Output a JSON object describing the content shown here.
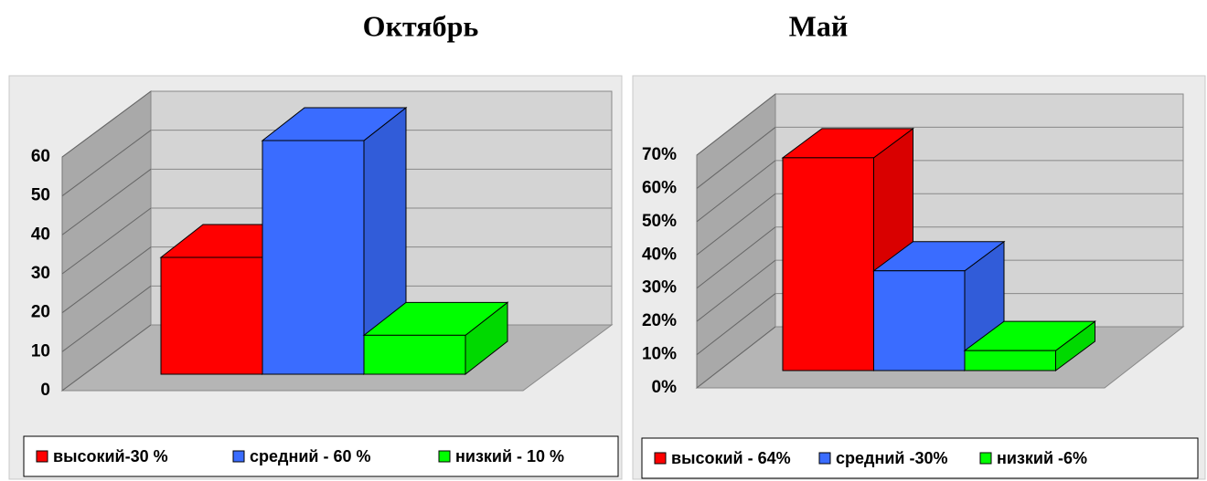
{
  "chart_data": [
    {
      "type": "bar3d",
      "title": "Октябрь",
      "categories": [
        "высокий-30 %",
        "средний - 60 %",
        "низкий - 10 %"
      ],
      "values": [
        30,
        60,
        10
      ],
      "colors": [
        "#ff0000",
        "#3a6cff",
        "#00ff00"
      ],
      "ylim": [
        0,
        60
      ],
      "yticks": [
        0,
        10,
        20,
        30,
        40,
        50,
        60
      ],
      "grid": true
    },
    {
      "type": "bar3d",
      "title": "Май",
      "categories": [
        "высокий - 64%",
        "средний -30%",
        "низкий -6%"
      ],
      "values": [
        64,
        30,
        6
      ],
      "colors": [
        "#ff0000",
        "#3a6cff",
        "#00ff00"
      ],
      "ylim": [
        0,
        70
      ],
      "yticks": [
        {
          "value": 0,
          "label": "0%"
        },
        {
          "value": 10,
          "label": "10%"
        },
        {
          "value": 20,
          "label": "20%"
        },
        {
          "value": 30,
          "label": "30%"
        },
        {
          "value": 40,
          "label": "40%"
        },
        {
          "value": 50,
          "label": "50%"
        },
        {
          "value": 60,
          "label": "60%"
        },
        {
          "value": 70,
          "label": "70%"
        }
      ],
      "grid": true
    }
  ]
}
